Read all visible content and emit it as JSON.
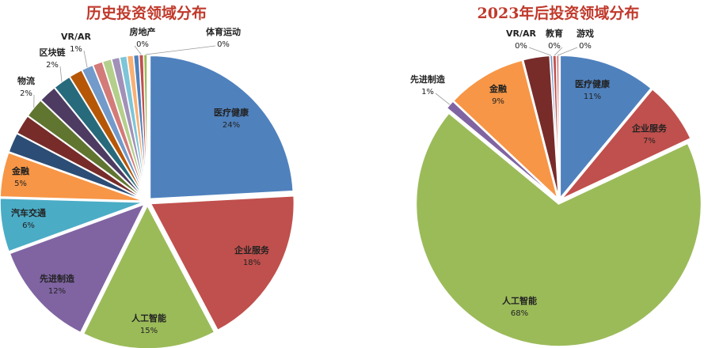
{
  "chart_data": [
    {
      "type": "pie",
      "title": "历史投资领域分布",
      "slices": [
        {
          "label": "医疗健康",
          "value": 24,
          "pct_label": "24%",
          "color": "#4f81bd"
        },
        {
          "label": "企业服务",
          "value": 18,
          "pct_label": "18%",
          "color": "#c0504d"
        },
        {
          "label": "人工智能",
          "value": 15,
          "pct_label": "15%",
          "color": "#9bbb59"
        },
        {
          "label": "先进制造",
          "value": 12,
          "pct_label": "12%",
          "color": "#8064a2"
        },
        {
          "label": "汽车交通",
          "value": 6,
          "pct_label": "6%",
          "color": "#4bacc6"
        },
        {
          "label": "金融",
          "value": 5,
          "pct_label": "5%",
          "color": "#f79646"
        },
        {
          "label": "",
          "value": 2.2,
          "pct_label": "",
          "color": "#2c4d75"
        },
        {
          "label": "",
          "value": 2.2,
          "pct_label": "",
          "color": "#772c2a"
        },
        {
          "label": "物流",
          "value": 2.2,
          "pct_label": "2%",
          "color": "#5f7530"
        },
        {
          "label": "",
          "value": 2.0,
          "pct_label": "",
          "color": "#4d3b62"
        },
        {
          "label": "区块链",
          "value": 2.0,
          "pct_label": "2%",
          "color": "#276a7c"
        },
        {
          "label": "",
          "value": 1.5,
          "pct_label": "",
          "color": "#b65708"
        },
        {
          "label": "VR/AR",
          "value": 1.3,
          "pct_label": "1%",
          "color": "#729aca"
        },
        {
          "label": "",
          "value": 1.1,
          "pct_label": "",
          "color": "#d37b79"
        },
        {
          "label": "",
          "value": 1.0,
          "pct_label": "",
          "color": "#b4cf8b"
        },
        {
          "label": "",
          "value": 0.9,
          "pct_label": "",
          "color": "#a191b8"
        },
        {
          "label": "",
          "value": 0.8,
          "pct_label": "",
          "color": "#7dc5d8"
        },
        {
          "label": "",
          "value": 0.7,
          "pct_label": "",
          "color": "#f9b074"
        },
        {
          "label": "",
          "value": 0.6,
          "pct_label": "",
          "color": "#4f81bd"
        },
        {
          "label": "房地产",
          "value": 0.5,
          "pct_label": "0%",
          "color": "#c0504d"
        },
        {
          "label": "体育运动",
          "value": 0.4,
          "pct_label": "0%",
          "color": "#9bbb59"
        }
      ]
    },
    {
      "type": "pie",
      "title": "2023年后投资领域分布",
      "slices": [
        {
          "label": "医疗健康",
          "value": 11,
          "pct_label": "11%",
          "color": "#4f81bd"
        },
        {
          "label": "企业服务",
          "value": 7,
          "pct_label": "7%",
          "color": "#c0504d"
        },
        {
          "label": "人工智能",
          "value": 68,
          "pct_label": "68%",
          "color": "#9bbb59"
        },
        {
          "label": "先进制造",
          "value": 1,
          "pct_label": "1%",
          "color": "#8064a2"
        },
        {
          "label": "金融",
          "value": 9,
          "pct_label": "9%",
          "color": "#f79646"
        },
        {
          "label": "",
          "value": 3,
          "pct_label": "",
          "color": "#772c2a"
        },
        {
          "label": "VR/AR",
          "value": 0.3,
          "pct_label": "0%",
          "color": "#729aca"
        },
        {
          "label": "教育",
          "value": 0.4,
          "pct_label": "0%",
          "color": "#c0504d"
        },
        {
          "label": "游戏",
          "value": 0.3,
          "pct_label": "0%",
          "color": "#d37b79"
        }
      ]
    }
  ]
}
